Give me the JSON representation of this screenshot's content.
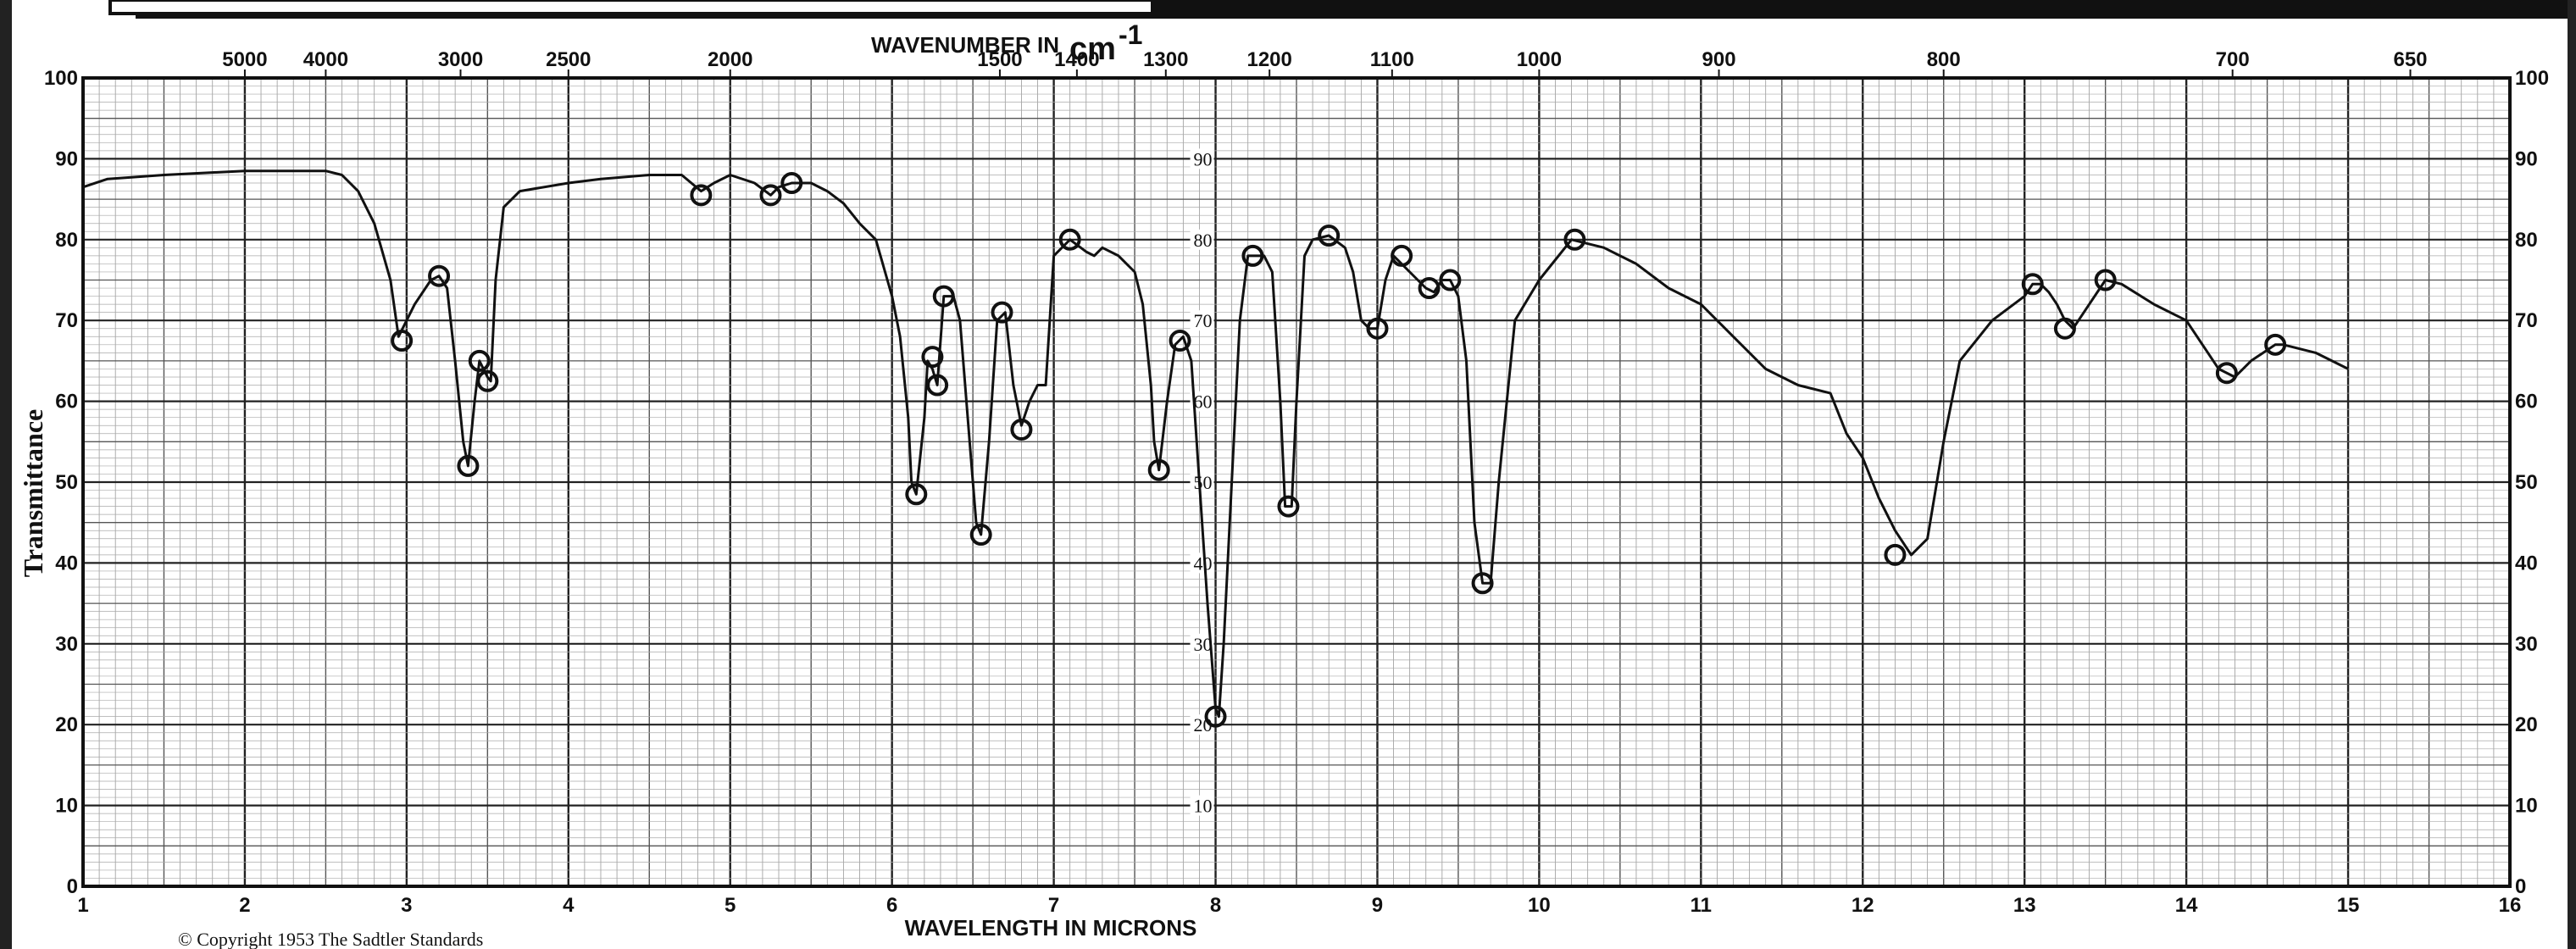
{
  "chart_data": {
    "type": "line",
    "x_unit": "microns",
    "xlim": [
      1,
      16
    ],
    "ylim": [
      0,
      100
    ],
    "top_axis_title_text": "WAVENUMBER  IN",
    "top_axis_unit_base": "cm",
    "top_axis_unit_exp": "-1",
    "xlabel": "WAVELENGTH  IN  MICRONS",
    "ylabel": "Transmittance",
    "footer_note": "© Copyright 1953  The Sadtler  Standards",
    "x_ticks": [
      "1",
      "2",
      "3",
      "4",
      "5",
      "6",
      "7",
      "8",
      "9",
      "10",
      "11",
      "12",
      "13",
      "14",
      "15",
      "16"
    ],
    "y_ticks": [
      "0",
      "10",
      "20",
      "30",
      "40",
      "50",
      "60",
      "70",
      "80",
      "90",
      "100"
    ],
    "y_ticks_center": [
      "10",
      "20",
      "30",
      "40",
      "50",
      "60",
      "70",
      "80",
      "90"
    ],
    "top_ticks": [
      {
        "label": "5000",
        "wavenumber": 5000
      },
      {
        "label": "4000",
        "wavenumber": 4000
      },
      {
        "label": "3000",
        "wavenumber": 3000
      },
      {
        "label": "2500",
        "wavenumber": 2500
      },
      {
        "label": "2000",
        "wavenumber": 2000
      },
      {
        "label": "1500",
        "wavenumber": 1500
      },
      {
        "label": "1400",
        "wavenumber": 1400
      },
      {
        "label": "1300",
        "wavenumber": 1300
      },
      {
        "label": "1200",
        "wavenumber": 1200
      },
      {
        "label": "1100",
        "wavenumber": 1100
      },
      {
        "label": "1000",
        "wavenumber": 1000
      },
      {
        "label": "900",
        "wavenumber": 900
      },
      {
        "label": "800",
        "wavenumber": 800
      },
      {
        "label": "700",
        "wavenumber": 700
      },
      {
        "label": "650",
        "wavenumber": 650
      }
    ],
    "grid": true,
    "series": [
      {
        "x": [
          1.0,
          1.15,
          1.5,
          2.0,
          2.5,
          2.6,
          2.7,
          2.8,
          2.9,
          2.95,
          3.05,
          3.15,
          3.2,
          3.25,
          3.3,
          3.35,
          3.38,
          3.42,
          3.45,
          3.5,
          3.52,
          3.55,
          3.6,
          3.7,
          4.0,
          4.2,
          4.5,
          4.7,
          4.82,
          4.9,
          5.0,
          5.15,
          5.25,
          5.3,
          5.38,
          5.5,
          5.6,
          5.7,
          5.8,
          5.9,
          6.0,
          6.05,
          6.1,
          6.12,
          6.15,
          6.2,
          6.22,
          6.25,
          6.28,
          6.32,
          6.38,
          6.42,
          6.48,
          6.52,
          6.55,
          6.6,
          6.65,
          6.7,
          6.75,
          6.8,
          6.85,
          6.9,
          6.95,
          7.0,
          7.1,
          7.2,
          7.25,
          7.3,
          7.4,
          7.5,
          7.55,
          7.6,
          7.62,
          7.65,
          7.7,
          7.75,
          7.8,
          7.85,
          7.9,
          7.95,
          8.0,
          8.02,
          8.05,
          8.1,
          8.15,
          8.2,
          8.3,
          8.35,
          8.4,
          8.43,
          8.47,
          8.5,
          8.55,
          8.6,
          8.7,
          8.8,
          8.85,
          8.9,
          8.95,
          9.0,
          9.05,
          9.1,
          9.15,
          9.2,
          9.3,
          9.35,
          9.4,
          9.45,
          9.5,
          9.55,
          9.6,
          9.65,
          9.7,
          9.75,
          9.85,
          10.0,
          10.2,
          10.4,
          10.6,
          10.8,
          11.0,
          11.2,
          11.4,
          11.6,
          11.8,
          11.9,
          12.0,
          12.1,
          12.2,
          12.3,
          12.4,
          12.5,
          12.6,
          12.8,
          13.0,
          13.05,
          13.1,
          13.15,
          13.2,
          13.25,
          13.3,
          13.4,
          13.5,
          13.6,
          13.8,
          14.0,
          14.1,
          14.2,
          14.3,
          14.4,
          14.55,
          14.6,
          14.8,
          15.0
        ],
        "y": [
          86.5,
          87.5,
          88.0,
          88.5,
          88.5,
          88.0,
          86.0,
          82.0,
          75.0,
          68.0,
          72.0,
          75.0,
          75.5,
          74.0,
          65.0,
          55.0,
          52.0,
          60.0,
          65.0,
          63.0,
          62.5,
          75.0,
          84.0,
          86.0,
          87.0,
          87.5,
          88.0,
          88.0,
          86.0,
          87.0,
          88.0,
          87.0,
          85.5,
          86.5,
          87.0,
          87.0,
          86.0,
          84.5,
          82.0,
          80.0,
          73.0,
          68.0,
          58.0,
          50.0,
          48.5,
          58.0,
          65.0,
          64.0,
          62.0,
          73.0,
          73.0,
          70.0,
          55.0,
          45.0,
          43.5,
          55.0,
          70.0,
          71.0,
          62.0,
          57.0,
          60.0,
          62.0,
          62.0,
          78.0,
          80.0,
          78.5,
          78.0,
          79.0,
          78.0,
          76.0,
          72.0,
          62.0,
          55.0,
          51.5,
          60.0,
          67.0,
          68.0,
          65.0,
          50.0,
          35.0,
          22.0,
          21.0,
          30.0,
          50.0,
          70.0,
          78.0,
          78.0,
          76.0,
          60.0,
          47.0,
          47.0,
          60.0,
          78.0,
          80.0,
          80.5,
          79.0,
          76.0,
          70.0,
          69.0,
          69.0,
          75.0,
          78.0,
          77.0,
          76.0,
          74.0,
          73.5,
          75.0,
          75.0,
          73.0,
          65.0,
          45.0,
          37.5,
          37.5,
          50.0,
          70.0,
          75.0,
          80.0,
          79.0,
          77.0,
          74.0,
          72.0,
          68.0,
          64.0,
          62.0,
          61.0,
          56.0,
          53.0,
          48.0,
          44.0,
          41.0,
          43.0,
          55.0,
          65.0,
          70.0,
          73.0,
          74.5,
          74.5,
          73.5,
          72.0,
          70.0,
          69.0,
          72.0,
          75.0,
          74.5,
          72.0,
          70.0,
          67.0,
          64.0,
          63.0,
          65.0,
          67.0,
          67.0,
          66.0,
          64.0
        ]
      }
    ],
    "marker_points": [
      {
        "x": 2.97,
        "y": 67.5
      },
      {
        "x": 3.2,
        "y": 75.5
      },
      {
        "x": 3.38,
        "y": 52.0
      },
      {
        "x": 3.45,
        "y": 65.0
      },
      {
        "x": 3.5,
        "y": 62.5
      },
      {
        "x": 4.82,
        "y": 85.5
      },
      {
        "x": 5.25,
        "y": 85.5
      },
      {
        "x": 5.38,
        "y": 87.0
      },
      {
        "x": 6.15,
        "y": 48.5
      },
      {
        "x": 6.25,
        "y": 65.5
      },
      {
        "x": 6.28,
        "y": 62.0
      },
      {
        "x": 6.32,
        "y": 73.0
      },
      {
        "x": 6.55,
        "y": 43.5
      },
      {
        "x": 6.68,
        "y": 71.0
      },
      {
        "x": 6.8,
        "y": 56.5
      },
      {
        "x": 7.1,
        "y": 80.0
      },
      {
        "x": 7.65,
        "y": 51.5
      },
      {
        "x": 7.78,
        "y": 67.5
      },
      {
        "x": 8.0,
        "y": 21.0
      },
      {
        "x": 8.23,
        "y": 78.0
      },
      {
        "x": 8.45,
        "y": 47.0
      },
      {
        "x": 8.7,
        "y": 80.5
      },
      {
        "x": 9.0,
        "y": 69.0
      },
      {
        "x": 9.15,
        "y": 78.0
      },
      {
        "x": 9.32,
        "y": 74.0
      },
      {
        "x": 9.45,
        "y": 75.0
      },
      {
        "x": 9.65,
        "y": 37.5
      },
      {
        "x": 10.22,
        "y": 80.0
      },
      {
        "x": 12.2,
        "y": 41.0
      },
      {
        "x": 13.05,
        "y": 74.5
      },
      {
        "x": 13.25,
        "y": 69.0
      },
      {
        "x": 13.5,
        "y": 75.0
      },
      {
        "x": 14.25,
        "y": 63.5
      },
      {
        "x": 14.55,
        "y": 67.0
      }
    ]
  }
}
